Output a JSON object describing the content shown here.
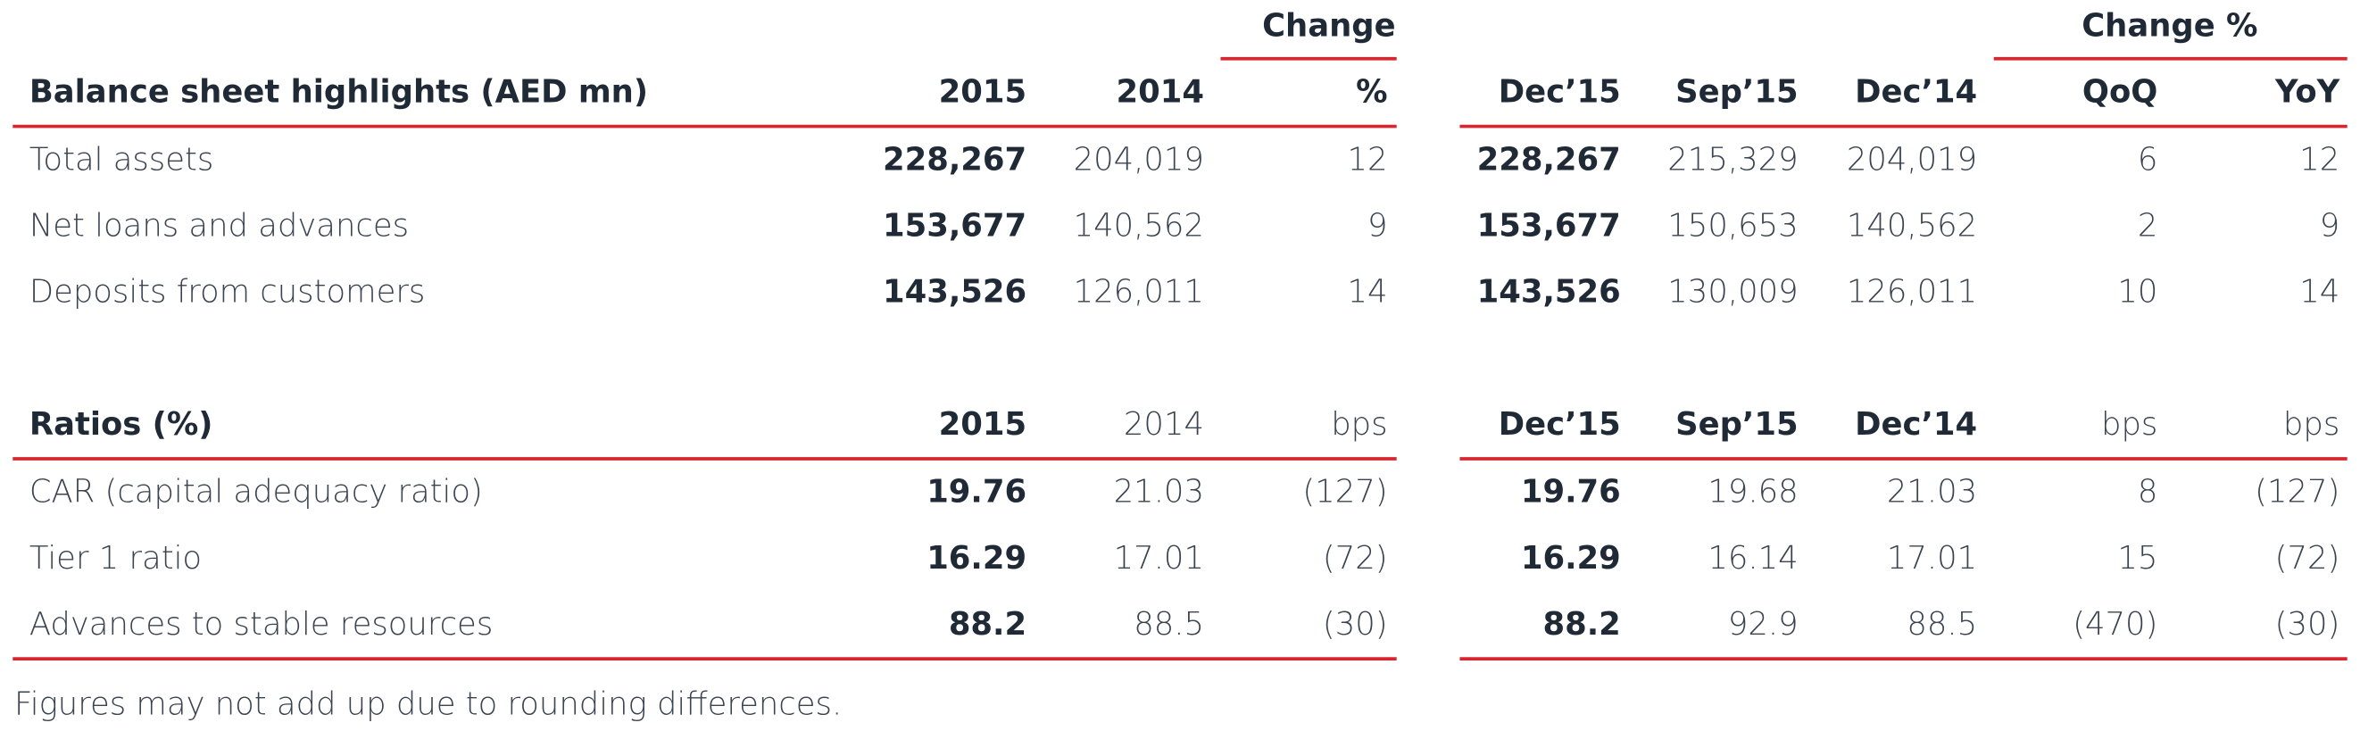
{
  "group_headers": {
    "left": "Change",
    "right": "Change %"
  },
  "tables": [
    {
      "header": [
        "Balance sheet highlights (AED mn)",
        "2015",
        "2014",
        "%",
        "Dec’15",
        "Sep’15",
        "Dec’14",
        "QoQ",
        "YoY"
      ],
      "rows": [
        [
          "Total assets",
          "228,267",
          "204,019",
          "12",
          "228,267",
          "215,329",
          "204,019",
          "6",
          "12"
        ],
        [
          "Net loans and advances",
          "153,677",
          "140,562",
          "9",
          "153,677",
          "150,653",
          "140,562",
          "2",
          "9"
        ],
        [
          "Deposits from customers",
          "143,526",
          "126,011",
          "14",
          "143,526",
          "130,009",
          "126,011",
          "10",
          "14"
        ]
      ]
    },
    {
      "header": [
        "Ratios (%)",
        "2015",
        "2014",
        "bps",
        "Dec’15",
        "Sep’15",
        "Dec’14",
        "bps",
        "bps"
      ],
      "rows": [
        [
          "CAR (capital adequacy ratio)",
          "19.76",
          "21.03",
          "(127)",
          "19.76",
          "19.68",
          "21.03",
          "8",
          "(127)"
        ],
        [
          "Tier 1 ratio",
          "16.29",
          "17.01",
          "(72)",
          "16.29",
          "16.14",
          "17.01",
          "15",
          "(72)"
        ],
        [
          "Advances to stable resources",
          "88.2",
          "88.5",
          "(30)",
          "88.2",
          "92.9",
          "88.5",
          "(470)",
          "(30)"
        ]
      ]
    }
  ],
  "footnote": "Figures may not add up due to rounding differences."
}
